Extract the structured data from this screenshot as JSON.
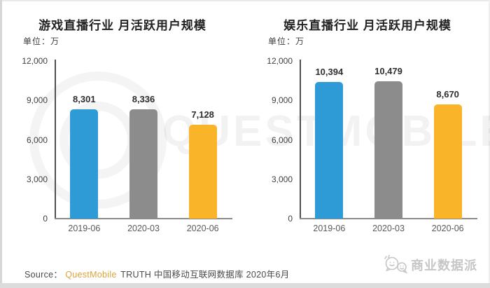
{
  "watermark": {
    "text": "QUESTMOBILE"
  },
  "source": {
    "prefix": "Source：",
    "brand": "QuestMobile",
    "rest": " TRUTH 中国移动互联网数据库 2020年6月",
    "brand_color": "#dfa23c"
  },
  "footer": {
    "brand": "商业数据派"
  },
  "colors": {
    "blue": "#2e9bd6",
    "gray": "#8c8c8c",
    "yellow": "#f9b42a",
    "axis_y": "#4f4f4f",
    "axis_x": "#8a8a8a"
  },
  "chart_data": [
    {
      "type": "bar",
      "title": "游戏直播行业 月活跃用户规模",
      "unit_label": "单位：万",
      "categories": [
        "2019-06",
        "2020-03",
        "2020-06"
      ],
      "values": [
        8301,
        8336,
        7128
      ],
      "value_labels": [
        "8,301",
        "8,336",
        "7,128"
      ],
      "bar_colors": [
        "#2e9bd6",
        "#8c8c8c",
        "#f9b42a"
      ],
      "ylim": [
        0,
        12000
      ],
      "y_ticks": [
        {
          "label": "12,000",
          "value": 12000
        },
        {
          "label": "9,000",
          "value": 9000
        },
        {
          "label": "6,000",
          "value": 6000
        },
        {
          "label": "3,000",
          "value": 3000
        },
        {
          "label": "0",
          "value": 0
        }
      ],
      "grid": false,
      "legend": "none"
    },
    {
      "type": "bar",
      "title": "娱乐直播行业 月活跃用户规模",
      "unit_label": "单位：万",
      "categories": [
        "2019-06",
        "2020-03",
        "2020-06"
      ],
      "values": [
        10394,
        10479,
        8670
      ],
      "value_labels": [
        "10,394",
        "10,479",
        "8,670"
      ],
      "bar_colors": [
        "#2e9bd6",
        "#8c8c8c",
        "#f9b42a"
      ],
      "ylim": [
        0,
        12000
      ],
      "y_ticks": [
        {
          "label": "12,000",
          "value": 12000
        },
        {
          "label": "9,000",
          "value": 9000
        },
        {
          "label": "6,000",
          "value": 6000
        },
        {
          "label": "3,000",
          "value": 3000
        },
        {
          "label": "0",
          "value": 0
        }
      ],
      "grid": false,
      "legend": "none"
    }
  ]
}
